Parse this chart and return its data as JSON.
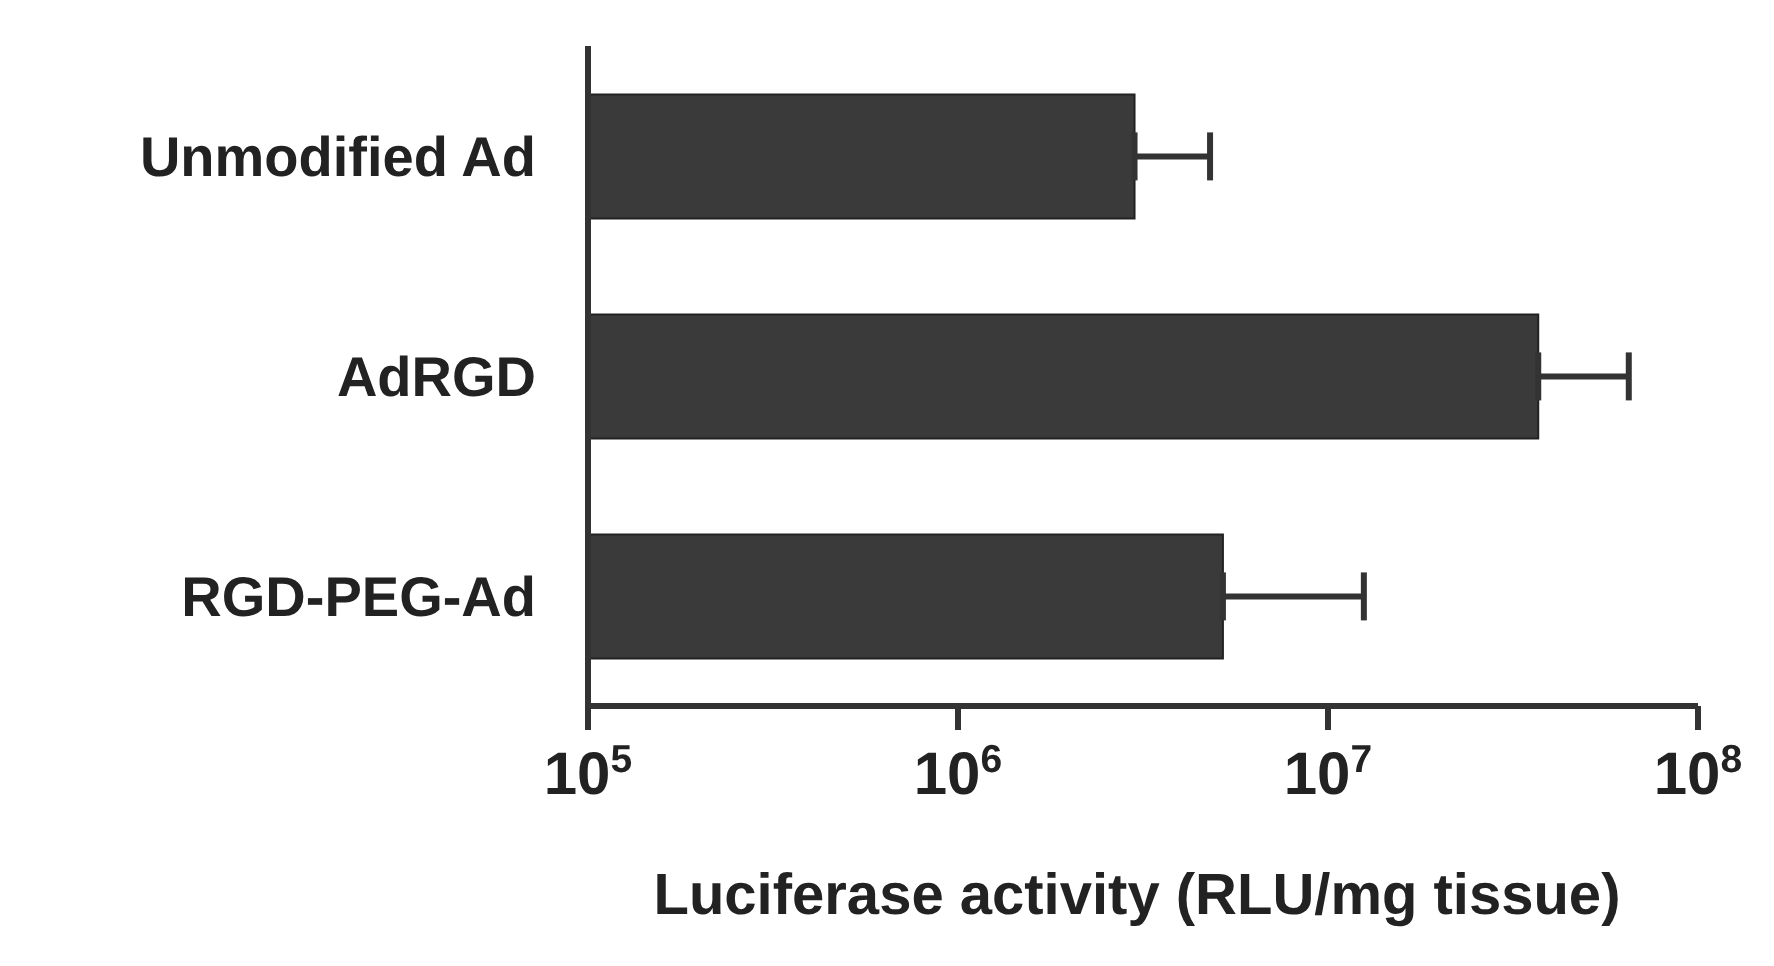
{
  "chart_data": {
    "type": "bar",
    "orientation": "horizontal",
    "log": "x",
    "xlabel": "Luciferase activity (RLU/mg tissue)",
    "categories": [
      "Unmodified Ad",
      "AdRGD",
      "RGD-PEG-Ad"
    ],
    "values": [
      3000000,
      37000000,
      5200000
    ],
    "errors": [
      [
        3000000,
        4800000
      ],
      [
        37000000,
        65000000
      ],
      [
        5200000,
        12500000
      ]
    ],
    "color": "#3a3a3a",
    "xlim": [
      100000,
      100000000
    ],
    "xticks": [
      {
        "value": 100000,
        "label": "10$^{5}$"
      },
      {
        "value": 1000000,
        "label": "10$^{6}$"
      },
      {
        "value": 10000000,
        "label": "10$^{7}$"
      },
      {
        "value": 100000000,
        "label": "10$^{8}$"
      }
    ],
    "grid": false,
    "legend": false
  }
}
